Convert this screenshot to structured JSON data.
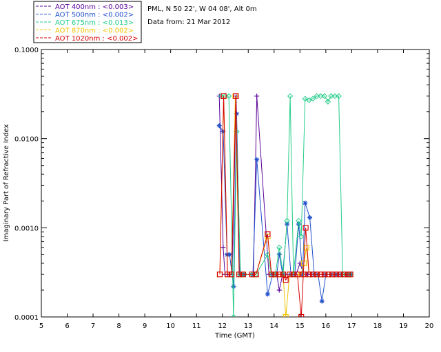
{
  "chart_data": {
    "type": "line",
    "xlabel": "Time (GMT)",
    "ylabel": "Imaginary Part of Refractive Index",
    "xlim": [
      5,
      20
    ],
    "ylim": [
      0.0001,
      0.1
    ],
    "yscale": "log",
    "xticks": [
      "5",
      "6",
      "7",
      "8",
      "9",
      "10",
      "11",
      "12",
      "13",
      "14",
      "15",
      "16",
      "17",
      "18",
      "19",
      "20"
    ],
    "yticks": [
      {
        "value": 0.0001,
        "label": "0.0001"
      },
      {
        "value": 0.001,
        "label": "0.0010"
      },
      {
        "value": 0.01,
        "label": "0.0100"
      },
      {
        "value": 0.1,
        "label": "0.1000"
      }
    ],
    "info": [
      "PML, N 50 22', W 04 08', Alt 0m",
      "Data from: 21 Mar 2012"
    ],
    "legend_position": "top-left",
    "series": [
      {
        "name": "AOT  400nm : <0.003>",
        "color": "#5a0099",
        "marker": "plus",
        "x": [
          11.88,
          12.03,
          12.1,
          12.2,
          12.28,
          12.38,
          12.53,
          12.68,
          12.83,
          13.2,
          13.33,
          13.8,
          13.95,
          14.1,
          14.2,
          14.33,
          14.5,
          14.7,
          14.85,
          15.0,
          15.15,
          15.3,
          15.45,
          15.6,
          15.75,
          15.9,
          16.05,
          16.2,
          16.35,
          16.5,
          16.65,
          16.8,
          16.95
        ],
        "y": [
          0.03,
          0.0006,
          0.0003,
          0.0003,
          0.0003,
          0.0003,
          0.03,
          0.0003,
          0.0003,
          0.0003,
          0.03,
          0.0003,
          0.0003,
          0.0003,
          0.0002,
          0.0003,
          0.0003,
          0.0003,
          0.0003,
          0.0004,
          0.0003,
          0.0003,
          0.0003,
          0.0003,
          0.0003,
          0.0003,
          0.0003,
          0.0003,
          0.0003,
          0.0003,
          0.0003,
          0.0003,
          0.0003
        ]
      },
      {
        "name": "AOT  500nm : <0.002>",
        "color": "#1f4fcc",
        "marker": "asterisk",
        "x": [
          11.88,
          12.03,
          12.18,
          12.28,
          12.43,
          12.55,
          12.68,
          12.83,
          13.18,
          13.33,
          13.75,
          13.95,
          14.1,
          14.2,
          14.33,
          14.5,
          14.65,
          14.8,
          14.95,
          15.1,
          15.2,
          15.38,
          15.55,
          15.7,
          15.85,
          16.0,
          16.2,
          16.4,
          16.6,
          16.8,
          16.95
        ],
        "y": [
          0.014,
          0.012,
          0.0005,
          0.0005,
          0.00022,
          0.019,
          0.0003,
          0.0003,
          0.0003,
          0.0058,
          0.00018,
          0.0003,
          0.0003,
          0.0005,
          0.0003,
          0.0011,
          0.0003,
          0.0003,
          0.0011,
          0.0003,
          0.0019,
          0.0013,
          0.0003,
          0.0003,
          0.00015,
          0.0003,
          0.0003,
          0.0003,
          0.0003,
          0.0003,
          0.0003
        ]
      },
      {
        "name": "AOT  675nm : <0.013>",
        "color": "#22cc88",
        "marker": "diamond",
        "x": [
          11.95,
          12.1,
          12.25,
          12.43,
          12.55,
          12.7,
          12.85,
          13.15,
          13.3,
          13.75,
          13.9,
          14.05,
          14.2,
          14.35,
          14.5,
          14.62,
          14.75,
          14.95,
          15.05,
          15.2,
          15.35,
          15.5,
          15.65,
          15.8,
          15.95,
          16.08,
          16.2,
          16.35,
          16.5,
          16.65,
          16.8,
          16.95
        ],
        "y": [
          0.03,
          0.03,
          0.03,
          0.0001,
          0.012,
          0.0003,
          0.0003,
          0.0003,
          0.0003,
          0.0005,
          0.0003,
          0.0003,
          0.0006,
          0.0003,
          0.0012,
          0.03,
          0.0003,
          0.0012,
          0.0008,
          0.028,
          0.027,
          0.028,
          0.03,
          0.03,
          0.03,
          0.026,
          0.03,
          0.03,
          0.03,
          0.0003,
          0.0003,
          0.0003
        ]
      },
      {
        "name": "AOT  870nm : <0.002>",
        "color": "#f2c200",
        "marker": "square",
        "x": [
          11.9,
          12.05,
          12.2,
          12.35,
          12.5,
          12.65,
          12.8,
          13.15,
          13.3,
          13.75,
          13.9,
          14.05,
          14.2,
          14.35,
          14.45,
          14.6,
          14.75,
          14.9,
          15.05,
          15.15,
          15.25,
          15.35,
          15.5,
          15.65,
          15.8,
          15.95,
          16.1,
          16.25,
          16.4,
          16.55,
          16.7,
          16.85,
          16.95
        ],
        "y": [
          0.0003,
          0.03,
          0.0003,
          0.0003,
          0.03,
          0.0003,
          0.0003,
          0.0003,
          0.0003,
          0.0008,
          0.0003,
          0.0003,
          0.0003,
          0.0003,
          0.0001,
          0.0003,
          0.0003,
          0.0003,
          0.0003,
          0.0004,
          0.0006,
          0.0003,
          0.0003,
          0.0003,
          0.0003,
          0.0003,
          0.0003,
          0.0003,
          0.0003,
          0.0003,
          0.0003,
          0.0003,
          0.0003
        ]
      },
      {
        "name": "AOT 1020nm : <0.002>",
        "color": "#d40000",
        "marker": "square",
        "x": [
          11.9,
          12.05,
          12.2,
          12.35,
          12.52,
          12.65,
          12.8,
          13.15,
          13.3,
          13.75,
          13.9,
          14.05,
          14.2,
          14.35,
          14.45,
          14.6,
          14.75,
          14.9,
          15.05,
          15.13,
          15.22,
          15.35,
          15.5,
          15.65,
          15.8,
          15.95,
          16.1,
          16.25,
          16.4,
          16.55,
          16.7,
          16.85,
          16.95
        ],
        "y": [
          0.0003,
          0.03,
          0.0003,
          0.0003,
          0.03,
          0.0003,
          0.0003,
          0.0003,
          0.0003,
          0.00085,
          0.0003,
          0.0003,
          0.0003,
          0.0003,
          0.00026,
          0.0003,
          0.0003,
          0.0003,
          0.0001,
          0.0003,
          0.001,
          0.0003,
          0.0003,
          0.0003,
          0.0003,
          0.0003,
          0.0003,
          0.0003,
          0.0003,
          0.0003,
          0.0003,
          0.0003,
          0.0003
        ]
      }
    ]
  }
}
